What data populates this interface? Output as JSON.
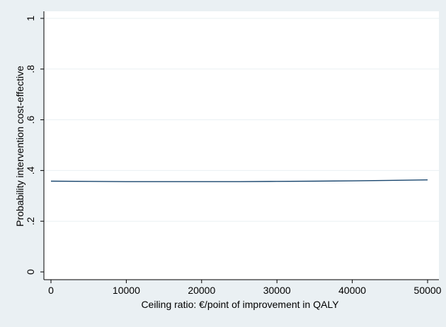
{
  "chart_data": {
    "type": "line",
    "title": "",
    "xlabel": "Ceiling ratio: €/point of improvement in QALY",
    "ylabel": "Probability intervention cost-effective",
    "xlim": [
      0,
      50000
    ],
    "ylim": [
      0,
      1
    ],
    "x_ticks": [
      0,
      10000,
      20000,
      30000,
      40000,
      50000
    ],
    "x_tick_labels": [
      "0",
      "10000",
      "20000",
      "30000",
      "40000",
      "50000"
    ],
    "y_ticks": [
      0,
      0.2,
      0.4,
      0.6,
      0.8,
      1
    ],
    "y_tick_labels": [
      "0",
      ".2",
      ".4",
      ".6",
      ".8",
      "1"
    ],
    "grid": true,
    "legend": "none",
    "colors": {
      "background": "#eaf0f3",
      "plot_area": "#ffffff",
      "grid": "#eaf0f3",
      "axis": "#000000",
      "series": "#1a476f"
    },
    "series": [
      {
        "name": "",
        "x": [
          0,
          5000,
          10000,
          15000,
          20000,
          25000,
          30000,
          35000,
          40000,
          45000,
          50000
        ],
        "values": [
          0.358,
          0.357,
          0.356,
          0.356,
          0.356,
          0.356,
          0.357,
          0.358,
          0.359,
          0.361,
          0.363
        ]
      }
    ]
  }
}
